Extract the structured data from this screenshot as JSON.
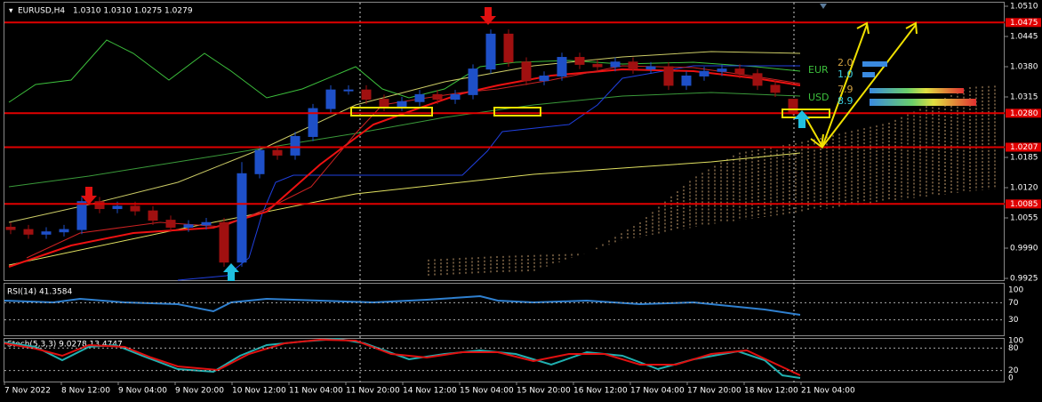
{
  "header": {
    "symbol": "EURUSD,H4",
    "ohlc": "1.0310 1.0310 1.0275 1.0279"
  },
  "chart_data": {
    "type": "candlestick",
    "open": [
      1.0035,
      1.003,
      1.002,
      1.0025,
      1.003,
      1.009,
      1.0075,
      1.008,
      1.007,
      1.005,
      1.0035,
      1.004,
      1.0045,
      0.996,
      1.015,
      1.02,
      1.019,
      1.023,
      1.029,
      1.033,
      1.033,
      1.031,
      1.0295,
      1.0305,
      1.032,
      1.031,
      1.032,
      1.0375,
      1.045,
      1.039,
      1.035,
      1.036,
      1.04,
      1.0385,
      1.038,
      1.039,
      1.0375,
      1.038,
      1.034,
      1.036,
      1.037,
      1.0375,
      1.0365,
      1.034,
      1.031
    ],
    "high": [
      1.0045,
      1.004,
      1.0035,
      1.004,
      1.01,
      1.01,
      1.009,
      1.009,
      1.008,
      1.006,
      1.005,
      1.0055,
      1.0055,
      1.0175,
      1.021,
      1.021,
      1.024,
      1.03,
      1.034,
      1.034,
      1.034,
      1.032,
      1.0315,
      1.033,
      1.033,
      1.033,
      1.0385,
      1.046,
      1.046,
      1.04,
      1.037,
      1.041,
      1.041,
      1.0395,
      1.04,
      1.04,
      1.039,
      1.039,
      1.037,
      1.038,
      1.0385,
      1.0385,
      1.0375,
      1.035,
      1.031
    ],
    "low": [
      1.002,
      1.001,
      1.001,
      1.0015,
      1.002,
      1.0065,
      1.0065,
      1.006,
      1.004,
      1.0025,
      1.0025,
      1.003,
      0.995,
      0.995,
      1.014,
      1.018,
      1.018,
      1.022,
      1.028,
      1.032,
      1.03,
      1.0285,
      1.0285,
      1.0295,
      1.03,
      1.03,
      1.031,
      1.0365,
      1.038,
      1.034,
      1.034,
      1.035,
      1.0375,
      1.037,
      1.037,
      1.0365,
      1.0365,
      1.033,
      1.033,
      1.035,
      1.036,
      1.0355,
      1.033,
      1.0315,
      1.0275
    ],
    "close": [
      1.003,
      1.002,
      1.0025,
      1.003,
      1.009,
      1.0075,
      1.008,
      1.007,
      1.005,
      1.0035,
      1.004,
      1.0045,
      0.996,
      1.015,
      1.02,
      1.019,
      1.023,
      1.029,
      1.033,
      1.033,
      1.031,
      1.0295,
      1.0305,
      1.032,
      1.031,
      1.032,
      1.0375,
      1.045,
      1.039,
      1.035,
      1.036,
      1.04,
      1.0385,
      1.038,
      1.039,
      1.0375,
      1.038,
      1.034,
      1.036,
      1.037,
      1.0375,
      1.0365,
      1.034,
      1.0325,
      1.0279
    ],
    "up_color": "#1e50c8",
    "down_color": "#a01010",
    "ylim": [
      0.9925,
      1.051
    ],
    "yticks": [
      {
        "value": 1.051,
        "label": "1.0510"
      },
      {
        "value": 1.0445,
        "label": "1.0445"
      },
      {
        "value": 1.038,
        "label": "1.0380"
      },
      {
        "value": 1.0315,
        "label": "1.0315"
      },
      {
        "value": 1.0185,
        "label": "1.0185"
      },
      {
        "value": 1.012,
        "label": "1.0120"
      },
      {
        "value": 1.0055,
        "label": "1.0055"
      },
      {
        "value": 0.999,
        "label": "0.9990"
      },
      {
        "value": 0.9925,
        "label": "0.9925"
      }
    ],
    "levels": [
      {
        "value": 1.0475,
        "label": "1.0475"
      },
      {
        "value": 1.028,
        "label": "1.0280"
      },
      {
        "value": 1.0207,
        "label": "1.0207"
      },
      {
        "value": 1.0085,
        "label": "1.0085"
      }
    ],
    "level_color": "#e00000"
  },
  "rsi": {
    "label": "RSI(14) 41.3584",
    "ylim": [
      0,
      100
    ],
    "yticks": [
      100,
      70,
      30
    ]
  },
  "stoch": {
    "label": "Stoch(5,3,3) 9.0278 13.4747",
    "ylim": [
      0,
      100
    ],
    "yticks": [
      100,
      80,
      20,
      0
    ]
  },
  "time_labels": [
    "7 Nov 2022",
    "8 Nov 12:00",
    "9 Nov 04:00",
    "9 Nov 20:00",
    "10 Nov 12:00",
    "11 Nov 04:00",
    "11 Nov 20:00",
    "14 Nov 12:00",
    "15 Nov 04:00",
    "15 Nov 20:00",
    "16 Nov 12:00",
    "17 Nov 04:00",
    "17 Nov 20:00",
    "18 Nov 12:00",
    "21 Nov 04:00"
  ],
  "strength": {
    "currencies": [
      "EUR",
      "USD"
    ],
    "values_top": [
      "2.0",
      "1.0"
    ],
    "values_bottom": [
      "7.9",
      "8.9"
    ]
  }
}
